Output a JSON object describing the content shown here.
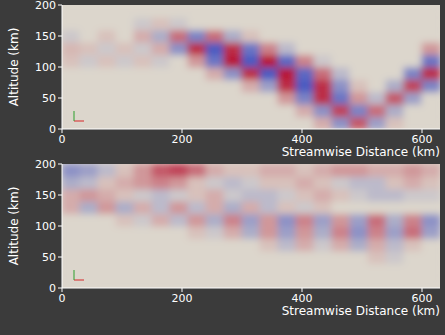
{
  "chart_data": [
    {
      "type": "heatmap",
      "x_label": "Streamwise Distance (km)",
      "y_label": "Altitude (km)",
      "xlim": [
        0,
        630
      ],
      "ylim": [
        0,
        200
      ],
      "xticks": [
        0,
        200,
        400,
        600
      ],
      "yticks": [
        0,
        50,
        100,
        150,
        200
      ],
      "clim": [
        -1,
        1
      ],
      "xbins": [
        0,
        30,
        60,
        90,
        120,
        150,
        180,
        210,
        240,
        270,
        300,
        330,
        360,
        390,
        420,
        450,
        480,
        510,
        540,
        570,
        600,
        630
      ],
      "ybins": [
        0,
        20,
        40,
        60,
        80,
        100,
        120,
        140,
        160,
        180,
        200
      ],
      "cells": [
        [
          0,
          0,
          0,
          0,
          0,
          0,
          0,
          0,
          0,
          0,
          0,
          0,
          0,
          0,
          0.2,
          -0.5,
          0.6,
          -0.4,
          0.1,
          0,
          0
        ],
        [
          0,
          0,
          0,
          0,
          0,
          0,
          0,
          0,
          0,
          0,
          0,
          0,
          0,
          0.2,
          -0.5,
          0.7,
          -0.6,
          0.5,
          -0.3,
          0,
          0
        ],
        [
          0,
          0,
          0,
          0,
          0,
          0,
          0,
          0,
          0,
          0,
          0,
          0,
          0.3,
          -0.6,
          0.8,
          -0.7,
          0.3,
          -0.2,
          0.6,
          -0.4,
          0
        ],
        [
          0,
          0,
          0,
          0,
          0,
          0,
          0,
          0,
          0,
          0,
          0.2,
          -0.4,
          0.8,
          -0.9,
          0.8,
          -0.5,
          0.1,
          0,
          -0.3,
          0.7,
          -0.6
        ],
        [
          0,
          0,
          0,
          0,
          0,
          0,
          0,
          0,
          0.2,
          -0.5,
          0.8,
          -0.9,
          0.9,
          -0.8,
          0.5,
          -0.2,
          0,
          0,
          0,
          -0.6,
          0.8
        ],
        [
          0.1,
          -0.1,
          0.1,
          -0.1,
          0.1,
          -0.1,
          0,
          0.3,
          -0.7,
          0.9,
          -0.9,
          0.9,
          -0.8,
          0.4,
          -0.1,
          0,
          0,
          0,
          0,
          0,
          -0.7
        ],
        [
          0.15,
          0.1,
          -0.1,
          0.1,
          -0.1,
          0.2,
          -0.5,
          0.8,
          -0.9,
          0.8,
          -0.7,
          0.4,
          -0.2,
          0,
          0,
          0,
          0,
          0,
          0,
          0,
          0.3
        ],
        [
          -0.1,
          0,
          0.1,
          0,
          0.2,
          -0.3,
          0.5,
          -0.6,
          0.5,
          -0.3,
          0.1,
          0,
          0,
          0,
          0,
          0,
          0,
          0,
          0,
          0,
          0
        ],
        [
          0,
          0,
          0,
          0,
          -0.1,
          0.1,
          -0.1,
          0,
          0,
          0,
          0,
          0,
          0,
          0,
          0,
          0,
          0,
          0,
          0,
          0,
          0
        ],
        [
          0,
          0,
          0,
          0,
          0,
          0,
          0,
          0,
          0,
          0,
          0,
          0,
          0,
          0,
          0,
          0,
          0,
          0,
          0,
          0,
          0
        ]
      ]
    },
    {
      "type": "heatmap",
      "x_label": "Streamwise Distance (km)",
      "y_label": "Altitude (km)",
      "xlim": [
        0,
        630
      ],
      "ylim": [
        0,
        200
      ],
      "xticks": [
        0,
        200,
        400,
        600
      ],
      "yticks": [
        0,
        50,
        100,
        150,
        200
      ],
      "clim": [
        -1,
        1
      ],
      "xbins": [
        0,
        30,
        60,
        90,
        120,
        150,
        180,
        210,
        240,
        270,
        300,
        330,
        360,
        390,
        420,
        450,
        480,
        510,
        540,
        570,
        600,
        630
      ],
      "ybins": [
        0,
        20,
        40,
        60,
        80,
        100,
        120,
        140,
        160,
        180,
        200
      ],
      "cells": [
        [
          0,
          0,
          0,
          0,
          0,
          0,
          0,
          0,
          0,
          0,
          0,
          0,
          0,
          0,
          0,
          0,
          0,
          0,
          0,
          0,
          0
        ],
        [
          0,
          0,
          0,
          0,
          0,
          0,
          0,
          0,
          0,
          0,
          0,
          0,
          0,
          0,
          0,
          0,
          0,
          0,
          0,
          0,
          0
        ],
        [
          0,
          0,
          0,
          0,
          0,
          0,
          0,
          0,
          0,
          0,
          0,
          0,
          0,
          0,
          0,
          0,
          0,
          0.1,
          -0.1,
          0,
          0
        ],
        [
          0,
          0,
          0,
          0,
          0,
          0,
          0,
          0,
          0,
          0,
          0,
          0.1,
          -0.2,
          0.2,
          -0.1,
          0.2,
          -0.3,
          0.2,
          -0.2,
          0.1,
          0
        ],
        [
          0,
          0,
          0,
          0,
          0,
          0,
          0,
          0.1,
          -0.1,
          0.2,
          -0.3,
          0.3,
          -0.4,
          0.3,
          -0.3,
          0.4,
          -0.5,
          0.4,
          -0.4,
          0.5,
          -0.4
        ],
        [
          0,
          0,
          0,
          0.1,
          -0.1,
          0.2,
          -0.2,
          0.3,
          -0.3,
          0.4,
          -0.4,
          0.3,
          -0.5,
          0.4,
          -0.4,
          0.3,
          -0.4,
          0.5,
          -0.3,
          0.4,
          -0.5
        ],
        [
          0.2,
          -0.3,
          0.3,
          -0.3,
          0.2,
          -0.2,
          0.3,
          -0.2,
          0.2,
          -0.3,
          0.2,
          -0.2,
          0.1,
          -0.1,
          0.1,
          0,
          0,
          0,
          0,
          0,
          0
        ],
        [
          0.2,
          0.3,
          0.2,
          0.1,
          -0.1,
          -0.2,
          -0.1,
          0.1,
          0.2,
          -0.1,
          -0.2,
          -0.2,
          -0.1,
          0.1,
          0.2,
          0.1,
          -0.1,
          -0.2,
          -0.2,
          -0.1,
          -0.1
        ],
        [
          -0.3,
          -0.2,
          0.1,
          0.2,
          0.3,
          0.4,
          0.3,
          0.1,
          -0.1,
          -0.2,
          -0.1,
          0.1,
          0.1,
          0.2,
          0.1,
          -0.1,
          -0.2,
          -0.2,
          0.1,
          0.2,
          0.1
        ],
        [
          -0.5,
          -0.4,
          -0.2,
          0.1,
          0.3,
          0.6,
          0.7,
          0.5,
          0.2,
          0.1,
          0.1,
          0.2,
          0.2,
          0.1,
          0.2,
          0.3,
          0.3,
          0.2,
          0.2,
          0.3,
          0.2
        ]
      ]
    }
  ]
}
